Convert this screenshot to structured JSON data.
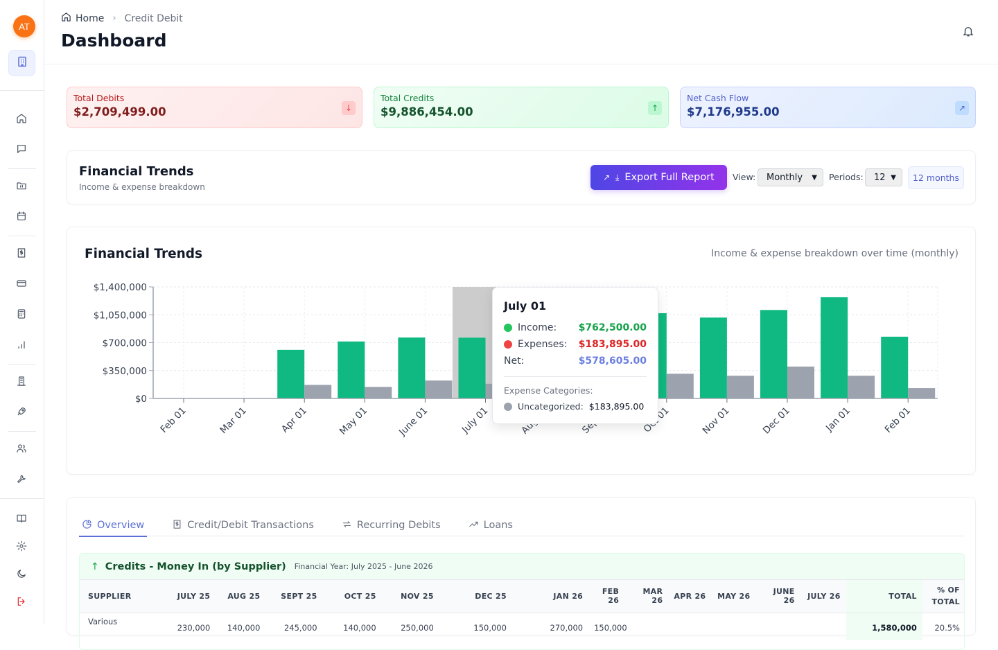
{
  "sidebar": {
    "avatar_initials": "AT",
    "icons": [
      "building-icon",
      "home-icon",
      "message-icon",
      "folder-chart-icon",
      "calendar-icon",
      "receipt-dollar-icon",
      "credit-card-icon",
      "calculator-icon",
      "bar-chart-icon",
      "office-building-icon",
      "rocket-icon",
      "users-icon",
      "wrench-icon",
      "book-icon",
      "settings-icon",
      "moon-icon",
      "logout-icon"
    ]
  },
  "header": {
    "breadcrumb_home": "Home",
    "breadcrumb_separator": "›",
    "breadcrumb_current": "Credit Debit",
    "title": "Dashboard"
  },
  "stats": {
    "debits": {
      "label": "Total Debits",
      "value": "$2,709,499.00",
      "icon": "↓"
    },
    "credits": {
      "label": "Total Credits",
      "value": "$9,886,454.00",
      "icon": "↑"
    },
    "net": {
      "label": "Net Cash Flow",
      "value": "$7,176,955.00",
      "icon": "↗"
    }
  },
  "trends_panel": {
    "title": "Financial Trends",
    "subtitle": "Income & expense breakdown",
    "export_label": "Export Full Report",
    "view_label": "View:",
    "view_value": "Monthly",
    "periods_label": "Periods:",
    "periods_value": "12",
    "months_badge": "12 months"
  },
  "chart_data": {
    "type": "bar",
    "title": "Financial Trends",
    "subtitle": "Income & expense breakdown over time (monthly)",
    "xlabel": "",
    "ylabel": "",
    "ylim": [
      0,
      1400000
    ],
    "y_ticks": [
      0,
      350000,
      700000,
      1050000,
      1400000
    ],
    "y_tick_labels": [
      "$0",
      "$350,000",
      "$700,000",
      "$1,050,000",
      "$1,400,000"
    ],
    "grid": true,
    "categories": [
      "Feb 01",
      "Mar 01",
      "Apr 01",
      "May 01",
      "June 01",
      "July 01",
      "Aug 01",
      "Sep 01",
      "Oct 01",
      "Nov 01",
      "Dec 01",
      "Jan 01",
      "Feb 01"
    ],
    "series": [
      {
        "name": "Income",
        "color": "#10b981",
        "values": [
          0,
          0,
          610000,
          715000,
          765000,
          762500,
          900000,
          950000,
          1070000,
          1015000,
          1110000,
          1270000,
          775000
        ]
      },
      {
        "name": "Expenses",
        "color": "#9ca3af",
        "values": [
          0,
          0,
          170000,
          145000,
          225000,
          183895,
          250000,
          260000,
          310000,
          285000,
          400000,
          285000,
          130000
        ]
      }
    ],
    "highlighted_category": "July 01"
  },
  "tooltip": {
    "title": "July 01",
    "income_label": "Income:",
    "income_value": "$762,500.00",
    "expenses_label": "Expenses:",
    "expenses_value": "$183,895.00",
    "net_label": "Net:",
    "net_value": "$578,605.00",
    "categories_heading": "Expense Categories:",
    "category_name": "Uncategorized:",
    "category_value": "$183,895.00",
    "colors": {
      "income": "#22c55e",
      "expenses": "#ef4444",
      "net": "#6b7fe0",
      "category": "#9ca3af",
      "income_text": "#16a34a",
      "expenses_text": "#dc2626"
    }
  },
  "tabs": [
    {
      "label": "Overview",
      "icon": "pie-chart-icon",
      "active": true
    },
    {
      "label": "Credit/Debit Transactions",
      "icon": "receipt-icon",
      "active": false
    },
    {
      "label": "Recurring Debits",
      "icon": "repeat-icon",
      "active": false
    },
    {
      "label": "Loans",
      "icon": "trending-up-icon",
      "active": false
    }
  ],
  "credits_table": {
    "arrow": "↑",
    "title": "Credits - Money In (by Supplier)",
    "financial_year": "Financial Year: July 2025 - June 2026",
    "headers": [
      "SUPPLIER",
      "JULY 25",
      "AUG 25",
      "SEPT 25",
      "OCT 25",
      "NOV 25",
      "DEC 25",
      "JAN 26",
      "FEB 26",
      "MAR 26",
      "APR 26",
      "MAY 26",
      "JUNE 26",
      "JULY 26",
      "TOTAL",
      "% OF TOTAL"
    ],
    "rows": [
      [
        "Various",
        "230,000",
        "140,000",
        "245,000",
        "140,000",
        "250,000",
        "150,000",
        "270,000",
        "150,000",
        "",
        "",
        "",
        "",
        "",
        "1,580,000",
        "20.5%"
      ]
    ]
  }
}
